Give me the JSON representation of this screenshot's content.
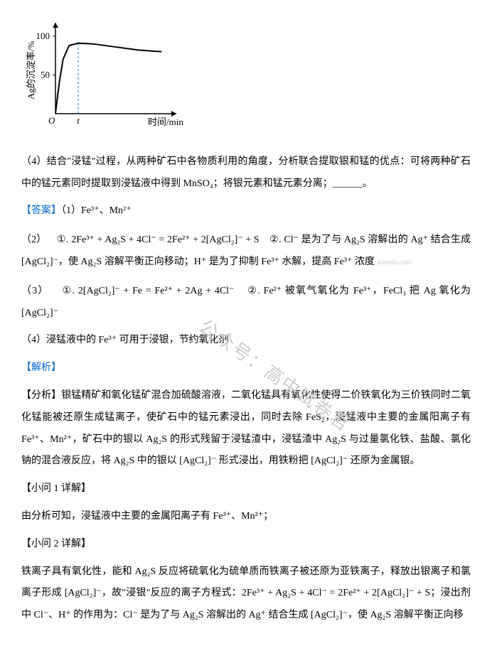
{
  "chart": {
    "type": "line",
    "y_label": "Ag的沉淀率/%",
    "x_label": "时间/min",
    "y_ticks": [
      50,
      100
    ],
    "x_marker": "t",
    "curve_points": [
      [
        0,
        0
      ],
      [
        5,
        40
      ],
      [
        10,
        70
      ],
      [
        18,
        88
      ],
      [
        30,
        91
      ],
      [
        50,
        90
      ],
      [
        80,
        86
      ],
      [
        110,
        82
      ],
      [
        140,
        80
      ]
    ],
    "ylim": [
      0,
      110
    ],
    "xlim": [
      0,
      150
    ],
    "axis_color": "#000000",
    "curve_color": "#000000",
    "guide_color": "#2b8bd6",
    "label_fontsize": 13,
    "tick_fontsize": 13
  },
  "q4_intro": "（4）结合\"浸锰\"过程，从两种矿石中各物质利用的角度，分析联合提取银和锰的优点：可将两种矿石中的锰元素同时提取到浸锰液中得到 MnSO₄；将银元素和锰元素分离；______。",
  "ans_label": "【答案】",
  "ans1": "（1）Fe³⁺、Mn²⁺",
  "ans2_num": "（2）",
  "ans2_c1_num": "①.",
  "ans2_c1_eq": "2Fe³⁺ + Ag₂S + 4Cl⁻ = 2Fe²⁺ + 2[AgCl₂]⁻ + S",
  "ans2_c2_num": "②.",
  "ans2_c2_a": "Cl⁻ 是为了与 Ag₂S 溶解出的 Ag⁺ 结合生成 [AgCl₂]⁻，使 Ag₂S 溶解平衡正向移动；H⁺ 是为了抑制 Fe³⁺ 水解，提高 Fe³⁺ 浓度",
  "wm_small": "aooedu.com",
  "ans3_num": "（3）",
  "ans3_c1_num": "①.",
  "ans3_c1_eq": "2[AgCl₂]⁻ + Fe = Fe²⁺ + 2Ag + 4Cl⁻",
  "ans3_c2_num": "②.",
  "ans3_c2_a": "Fe²⁺ 被氧气氧化为 Fe³⁺，FeCl₃ 把 Ag 氧化为 [AgCl₂]⁻",
  "ans4": "（4）浸锰液中的 Fe³⁺ 可用于浸银，节约氧化剂",
  "jiexi_label": "【解析】",
  "fenxi_label": "【分析】",
  "fenxi_body": "银锰精矿和氧化锰矿混合加硫酸溶液，二氧化锰具有氧化性使得二价铁氧化为三价铁同时二氧化锰能被还原生成锰离子，使矿石中的锰元素浸出，同时去除 FeS₂，浸锰液中主要的金属阳离子有 Fe³⁺、Mn²⁺，矿石中的银以 Ag₂S 的形式残留于浸锰渣中，浸锰渣中 Ag₂S 与过量氯化铁、盐酸、氯化钠的混合液反应，将 Ag₂S 中的银以 [AgCl₂]⁻ 形式浸出，用铁粉把 [AgCl₂]⁻ 还原为金属银。",
  "sq1_label": "【小问 1 详解】",
  "sq1_body": "由分析可知，浸锰液中主要的金属阳离子有 Fe³⁺、Mn²⁺；",
  "sq2_label": "【小问 2 详解】",
  "sq2_body": "铁离子具有氧化性，能和 Ag₂S 反应将硫氧化为硫单质而铁离子被还原为亚铁离子，释放出银离子和氯离子形成 [AgCl₂]⁻，故\"浸银\"反应的离子方程式：2Fe³⁺ + Ag₂S + 4Cl⁻ = 2Fe²⁺ + 2[AgCl₂]⁻ + S；浸出剂中 Cl⁻、H⁺ 的作用为：Cl⁻ 是为了与 Ag₂S 溶解出的 Ag⁺ 结合生成 [AgCl₂]⁻，使 Ag₂S 溶解平衡正向移",
  "watermark": "公众号：高中试卷君"
}
